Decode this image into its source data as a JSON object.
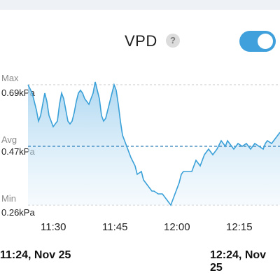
{
  "header": {
    "title": "VPD",
    "help_icon": "?",
    "toggle_on": true,
    "accent_color": "#3fa0db"
  },
  "chart_data": {
    "type": "area",
    "y_markers": {
      "max_label": "Max",
      "max_value": "0.69kPa",
      "avg_label": "Avg",
      "avg_value": "0.47kPa",
      "min_label": "Min",
      "min_value": "0.26kPa"
    },
    "x_ticks": [
      "11:30",
      "11:45",
      "12:00",
      "12:15"
    ],
    "range_start": "11:24, Nov 25",
    "range_end": "12:24, Nov 25",
    "series_minutes": [
      0,
      2,
      4,
      5,
      6,
      8,
      9,
      10,
      11,
      12,
      14,
      15,
      16,
      17,
      18,
      19,
      20,
      21,
      22,
      23,
      24,
      25,
      26,
      27,
      29,
      30,
      31,
      32,
      33,
      34,
      35,
      36,
      37,
      38,
      39,
      40,
      41,
      42,
      43,
      44,
      45,
      47,
      49,
      51,
      52,
      54,
      55,
      56,
      57,
      58,
      59,
      60,
      62,
      64,
      66,
      68,
      70,
      72,
      73,
      74,
      76,
      78,
      80,
      82,
      84,
      86,
      88,
      90,
      92,
      94,
      95,
      96,
      98,
      100,
      102,
      104,
      106,
      108,
      110,
      112,
      113,
      114,
      116,
      118,
      120
    ],
    "series_values": [
      0.69,
      0.66,
      0.6,
      0.56,
      0.58,
      0.66,
      0.63,
      0.58,
      0.56,
      0.54,
      0.56,
      0.62,
      0.66,
      0.64,
      0.6,
      0.56,
      0.55,
      0.56,
      0.59,
      0.63,
      0.66,
      0.67,
      0.66,
      0.64,
      0.62,
      0.64,
      0.66,
      0.7,
      0.67,
      0.64,
      0.58,
      0.56,
      0.57,
      0.6,
      0.63,
      0.66,
      0.69,
      0.67,
      0.62,
      0.56,
      0.51,
      0.47,
      0.43,
      0.4,
      0.37,
      0.38,
      0.35,
      0.34,
      0.33,
      0.32,
      0.31,
      0.31,
      0.3,
      0.3,
      0.28,
      0.26,
      0.3,
      0.34,
      0.37,
      0.38,
      0.38,
      0.38,
      0.42,
      0.4,
      0.44,
      0.46,
      0.44,
      0.46,
      0.49,
      0.47,
      0.49,
      0.48,
      0.46,
      0.48,
      0.47,
      0.48,
      0.46,
      0.48,
      0.47,
      0.46,
      0.48,
      0.49,
      0.48,
      0.5,
      0.52
    ],
    "x_range_minutes": [
      0,
      120
    ],
    "y_range": [
      0.26,
      0.69
    ],
    "avg_line": 0.47,
    "line_color": "#3aa0d8"
  }
}
